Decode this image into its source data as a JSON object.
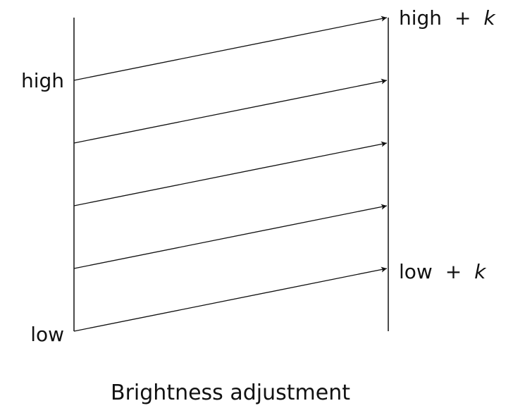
{
  "labels": {
    "left_high": "high",
    "left_low": "low",
    "right_high_base": "high",
    "right_low_base": "low",
    "plus": "+",
    "offset": "k"
  },
  "caption": "Brightness adjustment",
  "colors": {
    "line": "#111111",
    "background": "#ffffff"
  },
  "mapping_arrow_count": 5
}
